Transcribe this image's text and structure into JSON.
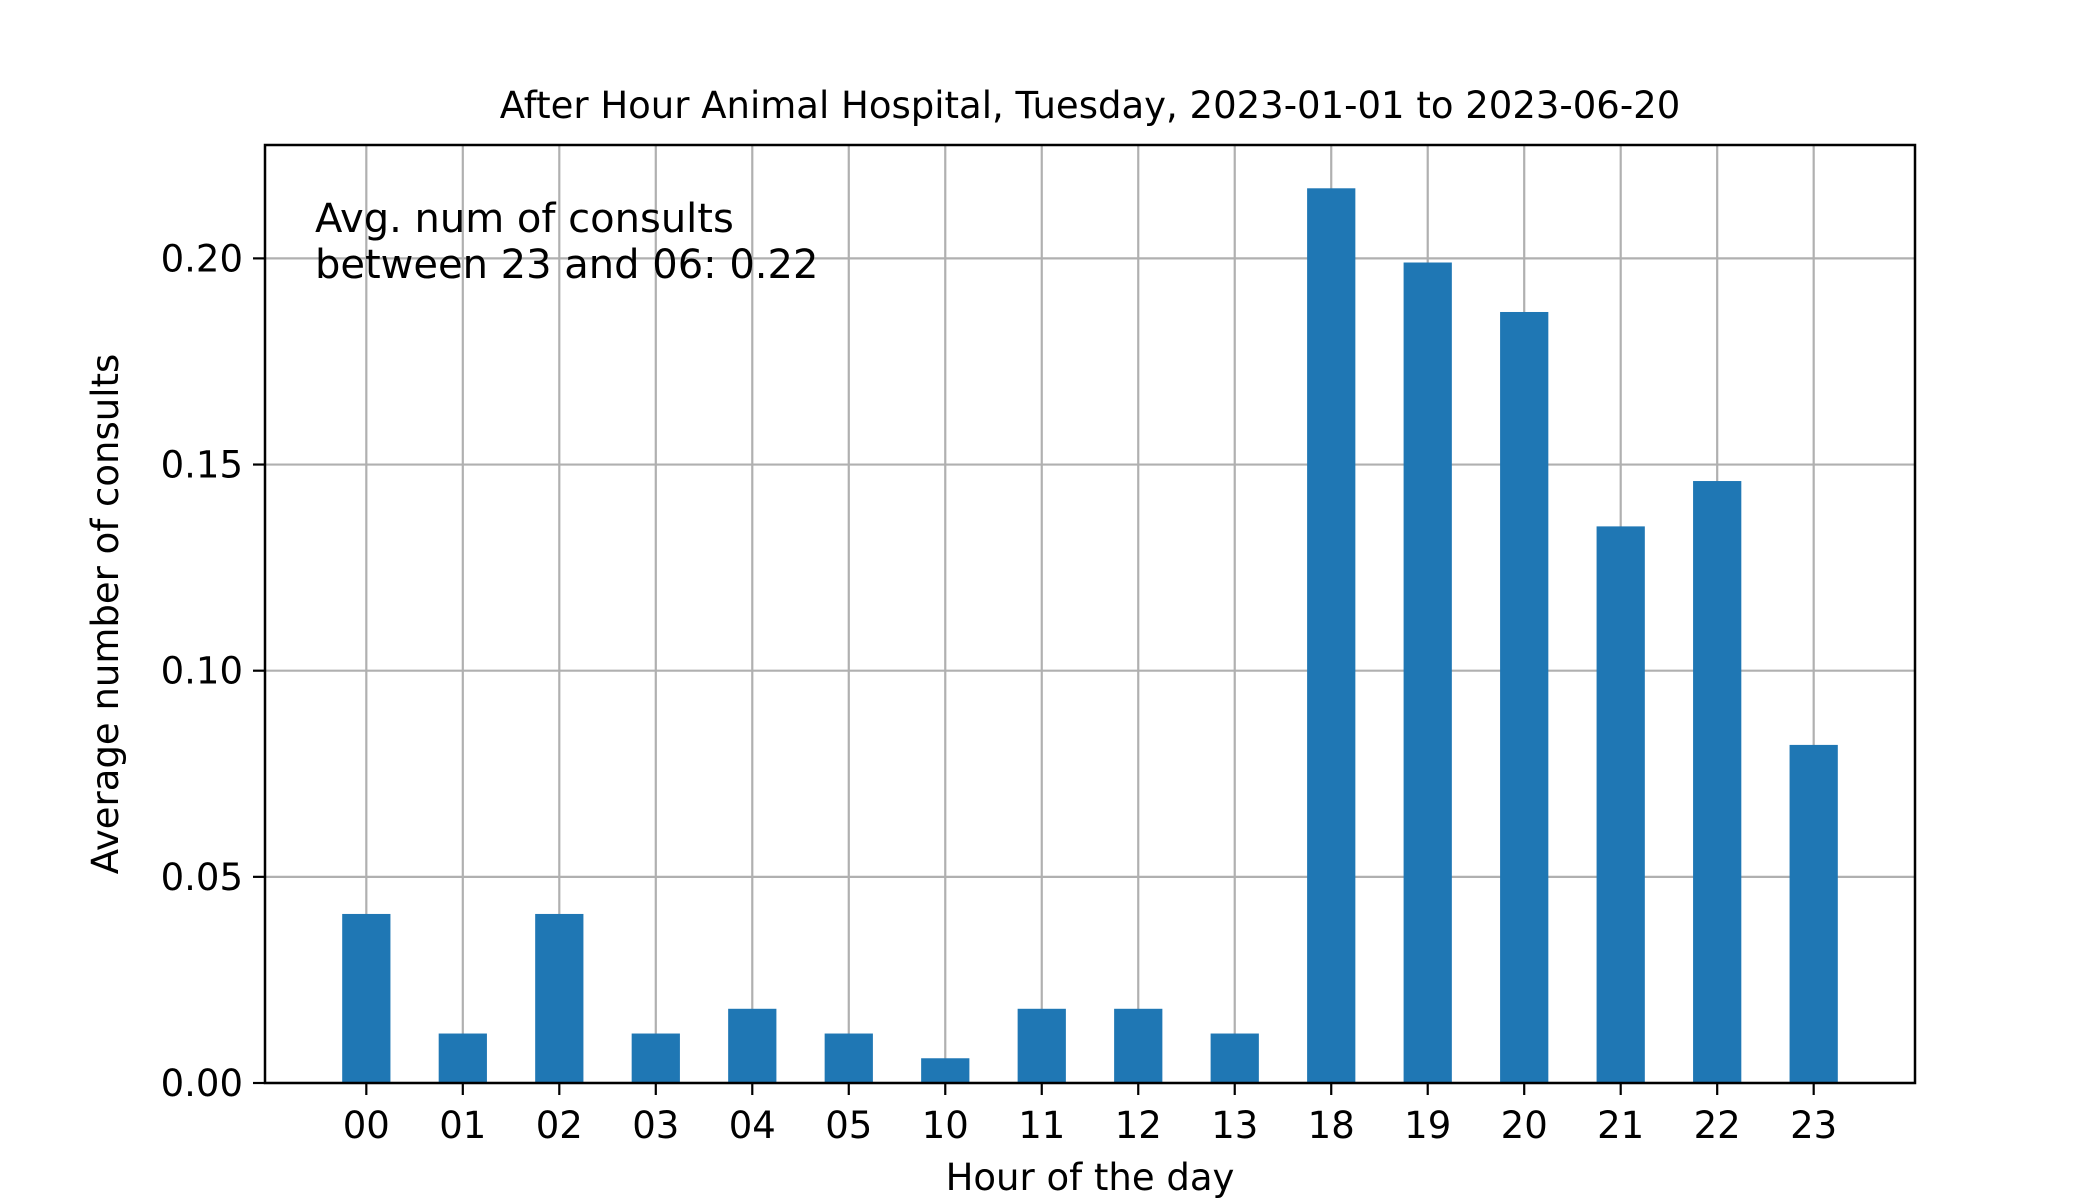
{
  "chart_data": {
    "type": "bar",
    "title": "After Hour Animal Hospital, Tuesday, 2023-01-01 to 2023-06-20",
    "xlabel": "Hour of the day",
    "ylabel": "Average number of consults",
    "categories": [
      "00",
      "01",
      "02",
      "03",
      "04",
      "05",
      "10",
      "11",
      "12",
      "13",
      "18",
      "19",
      "20",
      "21",
      "22",
      "23"
    ],
    "values": [
      0.041,
      0.012,
      0.041,
      0.012,
      0.018,
      0.012,
      0.006,
      0.018,
      0.018,
      0.012,
      0.217,
      0.199,
      0.187,
      0.135,
      0.146,
      0.082
    ],
    "ylim": [
      0,
      0.2275
    ],
    "yticks": [
      "0.00",
      "0.05",
      "0.10",
      "0.15",
      "0.20"
    ],
    "grid": true,
    "bar_color": "#1f77b4",
    "annotation": [
      "Avg. num of consults",
      "between 23 and 06: 0.22"
    ]
  }
}
